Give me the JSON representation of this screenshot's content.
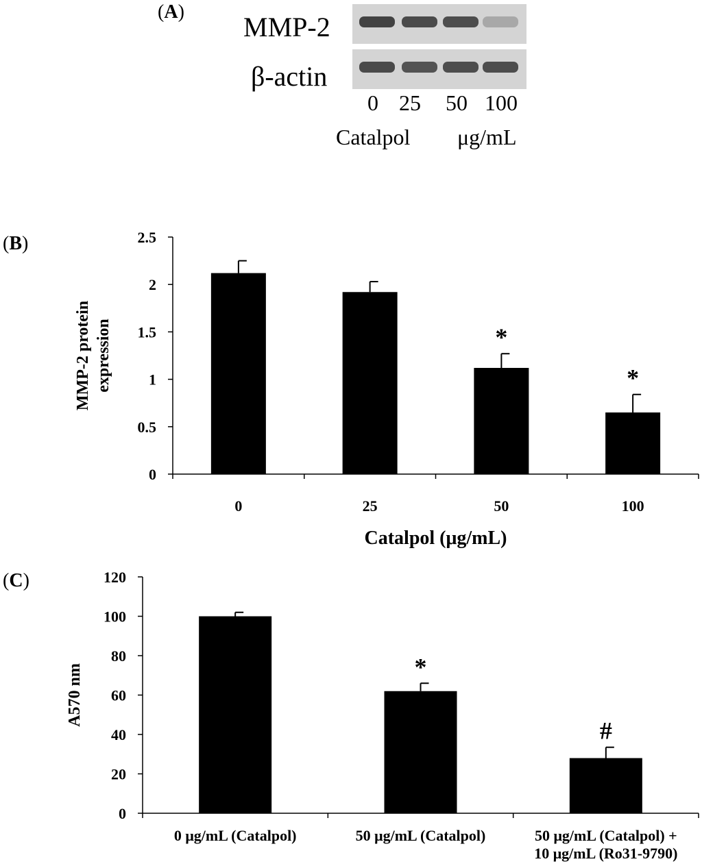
{
  "panel_a": {
    "label_paren_open": "(",
    "label_letter": "A",
    "label_paren_close": ")",
    "rows": [
      "MMP-2",
      "β-actin"
    ],
    "lanes": [
      "0",
      "25",
      "50",
      "100"
    ],
    "treatment_left": "Catalpol",
    "treatment_right": "μg/mL",
    "mmp2_band_intensity": [
      0.85,
      0.8,
      0.78,
      0.25
    ],
    "actin_band_intensity": [
      0.8,
      0.75,
      0.78,
      0.78
    ]
  },
  "panel_b": {
    "label_paren_open": "(",
    "label_letter": "B",
    "label_paren_close": ")"
  },
  "panel_c": {
    "label_paren_open": "(",
    "label_letter": "C",
    "label_paren_close": ")"
  },
  "chart_data": [
    {
      "type": "bar",
      "panel": "B",
      "title": "",
      "categories": [
        "0",
        "25",
        "50",
        "100"
      ],
      "values": [
        2.12,
        1.92,
        1.12,
        0.65
      ],
      "errors": [
        0.13,
        0.11,
        0.15,
        0.19
      ],
      "annotations": [
        "",
        "",
        "*",
        "*"
      ],
      "xlabel": "Catalpol (μg/mL)",
      "ylabel": "MMP-2 protein\nexpression",
      "ylim": [
        0,
        2.5
      ],
      "yticks": [
        "0",
        "0.5",
        "1",
        "1.5",
        "2",
        "2.5"
      ],
      "grid": false,
      "bar_color": "#000000"
    },
    {
      "type": "bar",
      "panel": "C",
      "title": "",
      "categories": [
        "0 μg/mL (Catalpol)",
        "50 μg/mL (Catalpol)",
        "50 μg/mL (Catalpol) +\n10 μg/mL (Ro31-9790)"
      ],
      "values": [
        100,
        62,
        28
      ],
      "errors": [
        2,
        4,
        5.5
      ],
      "annotations": [
        "",
        "*",
        "#"
      ],
      "xlabel": "",
      "ylabel": "A570 nm",
      "ylim": [
        0,
        120
      ],
      "yticks": [
        "0",
        "20",
        "40",
        "60",
        "80",
        "100",
        "120"
      ],
      "grid": false,
      "bar_color": "#000000"
    }
  ]
}
